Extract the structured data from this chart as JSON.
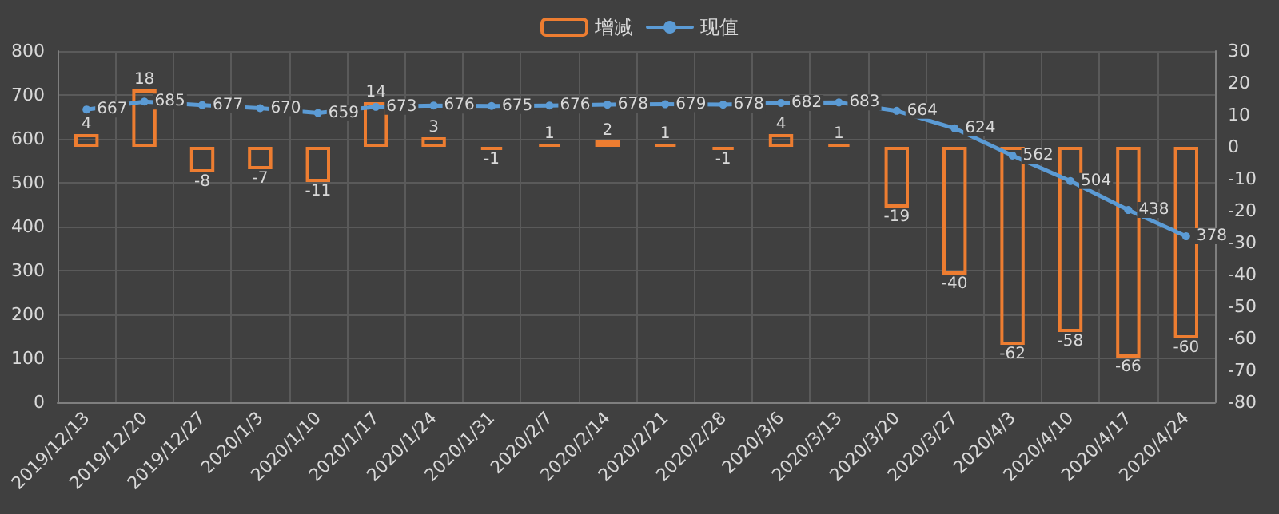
{
  "chart_data": {
    "type": "bar",
    "categories": [
      "2019/12/13",
      "2019/12/20",
      "2019/12/27",
      "2020/1/3",
      "2020/1/10",
      "2020/1/17",
      "2020/1/24",
      "2020/1/31",
      "2020/2/7",
      "2020/2/14",
      "2020/2/21",
      "2020/2/28",
      "2020/3/6",
      "2020/3/13",
      "2020/3/20",
      "2020/3/27",
      "2020/4/3",
      "2020/4/10",
      "2020/4/17",
      "2020/4/24"
    ],
    "series": [
      {
        "name": "增减",
        "axis": "y2",
        "color": "#ed7d31",
        "values": [
          4,
          18,
          -8,
          -7,
          -11,
          14,
          3,
          -1,
          1,
          2,
          1,
          -1,
          4,
          1,
          -19,
          -40,
          -62,
          -58,
          -66,
          -60
        ]
      },
      {
        "name": "现值",
        "type": "line",
        "color": "#5b9bd5",
        "values": [
          667,
          685,
          677,
          670,
          659,
          673,
          676,
          675,
          676,
          678,
          679,
          678,
          682,
          683,
          664,
          624,
          562,
          504,
          438,
          378
        ]
      }
    ],
    "ylim": [
      0,
      800
    ],
    "yticks": [
      0,
      100,
      200,
      300,
      400,
      500,
      600,
      700,
      800
    ],
    "y2lim": [
      -80,
      30
    ],
    "y2ticks": [
      -80,
      -70,
      -60,
      -50,
      -40,
      -30,
      -20,
      -10,
      0,
      10,
      20,
      30
    ],
    "grid": true,
    "legend": "top",
    "data_labels": true,
    "marker": "circle",
    "line_style": "solid"
  }
}
